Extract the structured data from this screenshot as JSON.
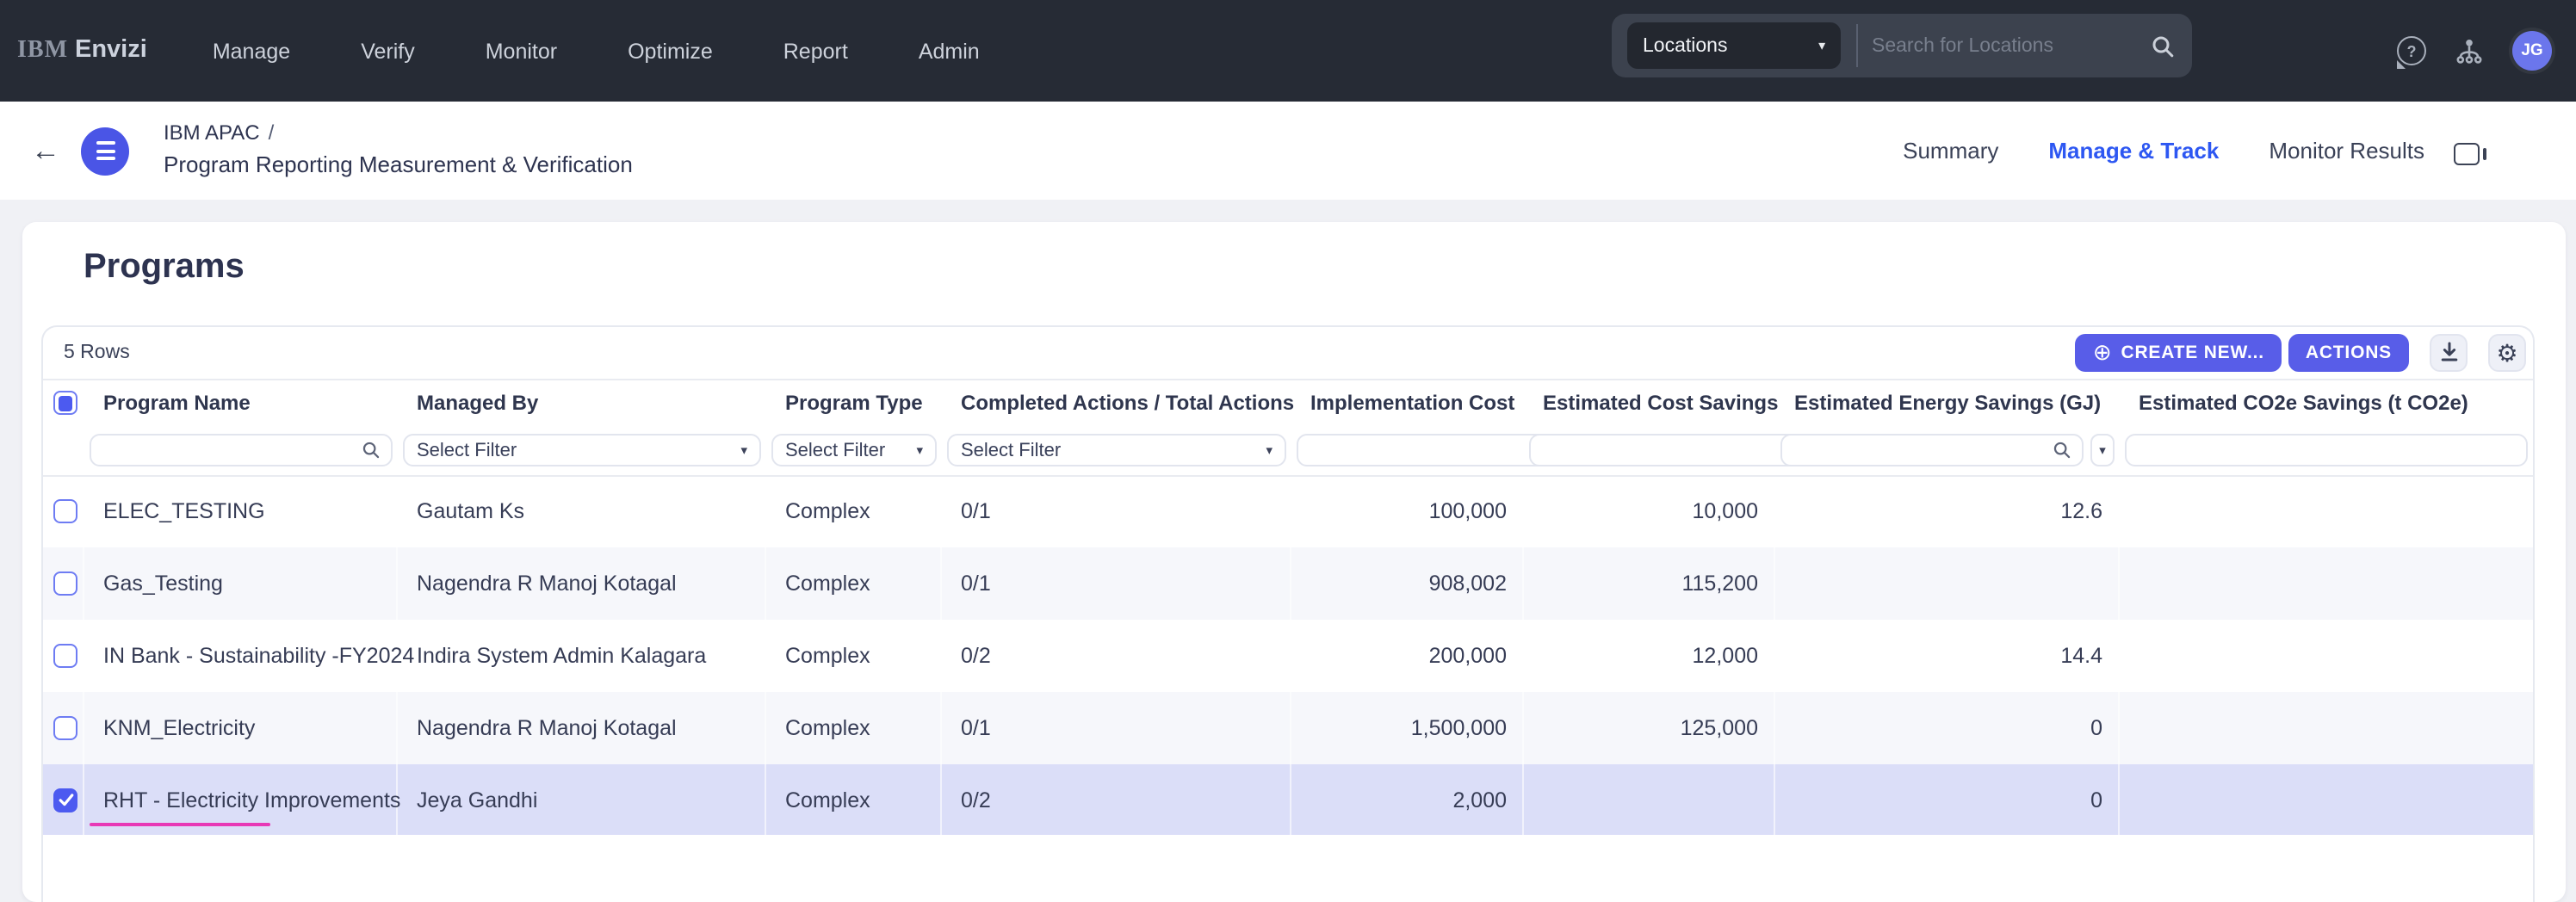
{
  "colors": {
    "nav_bg": "#262b35",
    "accent": "#585de8",
    "accent_dark": "#4a55e6",
    "avatar": "#6b76ec",
    "tab_active": "#2d57f2",
    "selection": "#dbdef8",
    "zebra": "#f6f7fb",
    "magenta": "#e839b6"
  },
  "glyphs": {
    "plus": "⊕",
    "caret": "▾",
    "gear": "⚙",
    "back_arrow": "←",
    "question": "?"
  },
  "brand": {
    "prefix": "IBM",
    "name": "Envizi"
  },
  "nav": {
    "items": [
      "Manage",
      "Verify",
      "Monitor",
      "Optimize",
      "Report",
      "Admin"
    ]
  },
  "search": {
    "category_label": "Locations",
    "placeholder": "Search for Locations"
  },
  "avatar": {
    "initials": "JG"
  },
  "breadcrumb": {
    "group": "IBM APAC",
    "separator": "/",
    "program": "Program Reporting Measurement & Verification"
  },
  "tabs": [
    {
      "label": "Summary",
      "active": false
    },
    {
      "label": "Manage & Track",
      "active": true
    },
    {
      "label": "Monitor Results",
      "active": false
    }
  ],
  "page": {
    "title": "Programs"
  },
  "toolbar": {
    "row_count": "5 Rows",
    "create_label": "CREATE NEW...",
    "actions_label": "ACTIONS"
  },
  "table": {
    "select_all_state": "partial",
    "select_filter_placeholder": "Select Filter",
    "columns": [
      {
        "label": "Program Name",
        "align": "left",
        "filter": "search"
      },
      {
        "label": "Managed By",
        "align": "left",
        "filter": "select"
      },
      {
        "label": "Program Type",
        "align": "left",
        "filter": "select"
      },
      {
        "label": "Completed Actions / Total Actions",
        "align": "left",
        "filter": "select"
      },
      {
        "label": "Implementation Cost",
        "align": "right",
        "filter": "search-caret"
      },
      {
        "label": "Estimated Cost Savings",
        "align": "right",
        "filter": "search-caret"
      },
      {
        "label": "Estimated Energy Savings (GJ)",
        "align": "right",
        "filter": "search-caret"
      },
      {
        "label": "Estimated CO2e Savings (t CO2e)",
        "align": "left",
        "filter": "plain"
      }
    ],
    "rows": [
      {
        "selected": false,
        "cells": [
          "ELEC_TESTING",
          "Gautam Ks",
          "Complex",
          "0/1",
          "100,000",
          "10,000",
          "12.6",
          ""
        ]
      },
      {
        "selected": false,
        "cells": [
          "Gas_Testing",
          "Nagendra R Manoj Kotagal",
          "Complex",
          "0/1",
          "908,002",
          "115,200",
          "",
          ""
        ]
      },
      {
        "selected": false,
        "cells": [
          "IN Bank - Sustainability -FY2024",
          "Indira System Admin Kalagara",
          "Complex",
          "0/2",
          "200,000",
          "12,000",
          "14.4",
          ""
        ]
      },
      {
        "selected": false,
        "cells": [
          "KNM_Electricity",
          "Nagendra R Manoj Kotagal",
          "Complex",
          "0/1",
          "1,500,000",
          "125,000",
          "0",
          ""
        ]
      },
      {
        "selected": true,
        "cells": [
          "RHT - Electricity Improvements",
          "Jeya Gandhi",
          "Complex",
          "0/2",
          "2,000",
          "",
          "0",
          ""
        ]
      }
    ]
  }
}
